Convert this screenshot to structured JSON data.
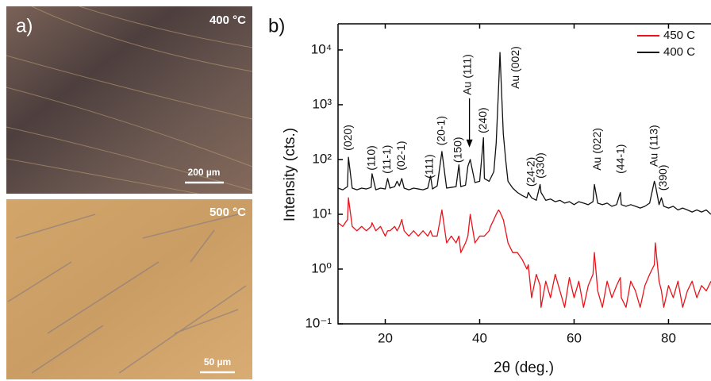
{
  "micrograph_panel": {
    "label": "a)",
    "images": [
      {
        "temperature": "400 °C",
        "scale_bar": "200 µm"
      },
      {
        "temperature": "500 °C",
        "scale_bar": "50 µm"
      }
    ]
  },
  "chart_data": {
    "type": "line",
    "panel_label": "b)",
    "xlabel": "2θ (deg.)",
    "ylabel": "Intensity (cts.)",
    "log_y": true,
    "legend": "upper right",
    "xlim": [
      10,
      89
    ],
    "ylim": [
      0.1,
      30000
    ],
    "xticks": [
      20,
      40,
      60,
      80
    ],
    "yticks": [
      {
        "value": 0.1,
        "label": "10⁻¹"
      },
      {
        "value": 1,
        "label": "10⁰"
      },
      {
        "value": 10,
        "label": "10¹"
      },
      {
        "value": 100,
        "label": "10²"
      },
      {
        "value": 1000,
        "label": "10³"
      },
      {
        "value": 10000,
        "label": "10⁴"
      }
    ],
    "x": [
      10,
      11,
      12,
      12.2,
      13,
      14,
      15,
      16,
      17,
      17.2,
      18,
      19,
      20,
      20.5,
      21,
      22,
      22.5,
      23,
      23.5,
      24,
      25,
      26,
      27,
      28,
      29,
      29.6,
      30,
      31,
      32,
      33,
      34,
      35,
      35.6,
      36,
      37,
      37.5,
      38,
      39,
      40,
      40.8,
      41,
      42,
      42.3,
      43,
      43.5,
      44,
      44.3,
      45,
      45.5,
      46,
      47,
      48,
      49,
      50,
      50.3,
      51,
      52,
      52.8,
      53,
      54,
      55,
      56,
      57,
      58,
      59,
      60,
      61,
      62,
      63,
      64,
      64.3,
      65,
      66,
      67,
      68,
      69,
      69.8,
      70,
      71,
      72,
      73,
      74,
      75,
      76,
      77,
      77.2,
      78,
      78.5,
      79,
      80,
      81,
      82,
      83,
      84,
      85,
      86,
      87,
      88,
      89
    ],
    "series": [
      {
        "name": "450 C",
        "color": "#e8141b",
        "values": [
          7,
          6,
          8,
          20,
          6,
          5,
          6,
          5,
          6,
          7,
          5,
          6,
          4,
          5,
          5,
          6,
          5,
          6,
          8,
          5,
          4,
          5,
          4,
          5,
          4,
          5,
          4,
          4,
          12,
          3,
          4,
          3,
          4,
          2,
          3,
          4,
          10,
          3,
          4,
          4,
          4,
          5,
          6,
          8,
          10,
          12,
          11,
          8,
          5,
          3,
          2,
          2,
          1.5,
          1,
          1.2,
          0.3,
          0.8,
          0.5,
          0.2,
          0.6,
          0.3,
          0.8,
          0.4,
          0.2,
          0.7,
          0.3,
          0.6,
          0.2,
          0.5,
          0.8,
          2,
          0.4,
          0.2,
          0.6,
          0.3,
          0.5,
          0.7,
          0.3,
          0.2,
          0.6,
          0.4,
          0.2,
          0.5,
          0.8,
          1.2,
          3,
          0.6,
          0.4,
          0.2,
          0.5,
          0.3,
          0.6,
          0.2,
          0.4,
          0.6,
          0.3,
          0.5,
          0.4,
          0.6
        ]
      },
      {
        "name": "400 C",
        "color": "#111111",
        "values": [
          30,
          28,
          32,
          110,
          30,
          28,
          30,
          29,
          31,
          55,
          28,
          30,
          29,
          45,
          30,
          32,
          40,
          33,
          45,
          30,
          28,
          30,
          29,
          28,
          30,
          50,
          29,
          33,
          140,
          30,
          31,
          32,
          80,
          32,
          34,
          75,
          100,
          38,
          40,
          250,
          45,
          40,
          45,
          60,
          200,
          2000,
          9000,
          300,
          100,
          40,
          30,
          25,
          22,
          20,
          25,
          20,
          18,
          35,
          25,
          18,
          19,
          17,
          18,
          16,
          17,
          15,
          17,
          16,
          15,
          17,
          35,
          16,
          15,
          16,
          14,
          15,
          25,
          15,
          14,
          15,
          14,
          13,
          14,
          16,
          40,
          35,
          15,
          20,
          14,
          13,
          14,
          12,
          13,
          12,
          11,
          12,
          11,
          12,
          10
        ]
      }
    ],
    "annotations": [
      {
        "text": "(020)",
        "x": 12.2,
        "y": 145
      },
      {
        "text": "(110)",
        "x": 17.2,
        "y": 63
      },
      {
        "text": "(11-1)",
        "x": 20.5,
        "y": 55
      },
      {
        "text": "(02-1)",
        "x": 23.5,
        "y": 63
      },
      {
        "text": "(111)",
        "x": 29.5,
        "y": 45
      },
      {
        "text": "(20-1)",
        "x": 32,
        "y": 180
      },
      {
        "text": "(150)",
        "x": 35.5,
        "y": 87
      },
      {
        "text": "Au (111)",
        "x": 37.5,
        "y": 1500,
        "arrow": true
      },
      {
        "text": "(240)",
        "x": 40.8,
        "y": 300
      },
      {
        "text": "Au (002)",
        "x": 47.7,
        "y": 1950
      },
      {
        "text": "(24-2)",
        "x": 51,
        "y": 32
      },
      {
        "text": "(330)",
        "x": 53,
        "y": 45
      },
      {
        "text": "Au (022)",
        "x": 65,
        "y": 63
      },
      {
        "text": "(44-1)",
        "x": 70,
        "y": 55
      },
      {
        "text": "Au (113)",
        "x": 77,
        "y": 74
      },
      {
        "text": "(390)",
        "x": 79,
        "y": 27
      }
    ]
  }
}
